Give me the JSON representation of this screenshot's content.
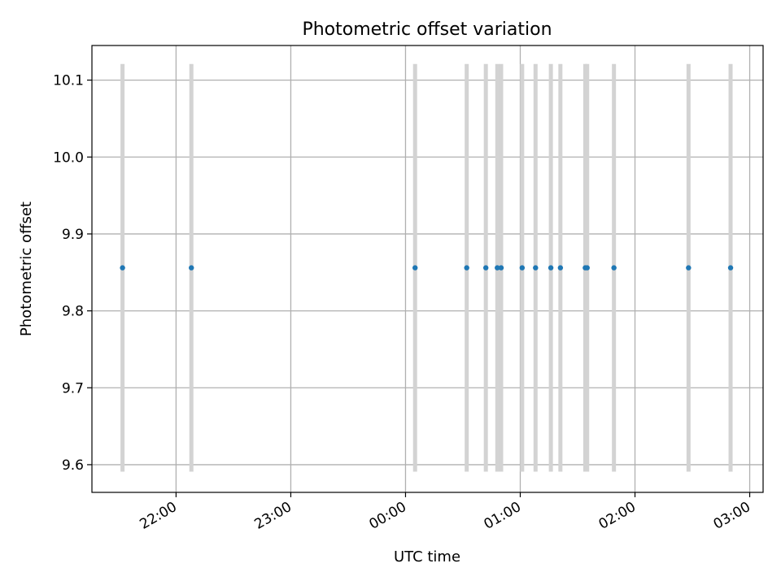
{
  "chart_data": {
    "type": "scatter",
    "title": "Photometric offset variation",
    "xlabel": "UTC time",
    "ylabel": "Photometric offset",
    "grid": true,
    "x_axis_kind": "time",
    "xlim": [
      "21:16",
      "03:07"
    ],
    "ylim": [
      9.564,
      10.145
    ],
    "x_ticks": [
      "22:00",
      "23:00",
      "00:00",
      "01:00",
      "02:00",
      "03:00"
    ],
    "y_ticks": [
      9.6,
      9.7,
      9.8,
      9.9,
      10.0,
      10.1
    ],
    "y_tick_labels": [
      "9.6",
      "9.7",
      "9.8",
      "9.9",
      "10.0",
      "10.1"
    ],
    "point_color": "#1f77b4",
    "errorbar_color": "#d3d3d3",
    "points": [
      {
        "x": "21:32",
        "y": 9.856,
        "yerr": 0.265
      },
      {
        "x": "22:08",
        "y": 9.856,
        "yerr": 0.265
      },
      {
        "x": "00:05",
        "y": 9.856,
        "yerr": 0.265
      },
      {
        "x": "00:32",
        "y": 9.856,
        "yerr": 0.265
      },
      {
        "x": "00:42",
        "y": 9.856,
        "yerr": 0.265
      },
      {
        "x": "00:48",
        "y": 9.856,
        "yerr": 0.265
      },
      {
        "x": "00:50",
        "y": 9.856,
        "yerr": 0.265
      },
      {
        "x": "01:01",
        "y": 9.856,
        "yerr": 0.265
      },
      {
        "x": "01:08",
        "y": 9.856,
        "yerr": 0.265
      },
      {
        "x": "01:16",
        "y": 9.856,
        "yerr": 0.265
      },
      {
        "x": "01:21",
        "y": 9.856,
        "yerr": 0.265
      },
      {
        "x": "01:34",
        "y": 9.856,
        "yerr": 0.265
      },
      {
        "x": "01:35",
        "y": 9.856,
        "yerr": 0.265
      },
      {
        "x": "01:49",
        "y": 9.856,
        "yerr": 0.265
      },
      {
        "x": "02:28",
        "y": 9.856,
        "yerr": 0.265
      },
      {
        "x": "02:50",
        "y": 9.856,
        "yerr": 0.265
      }
    ]
  }
}
